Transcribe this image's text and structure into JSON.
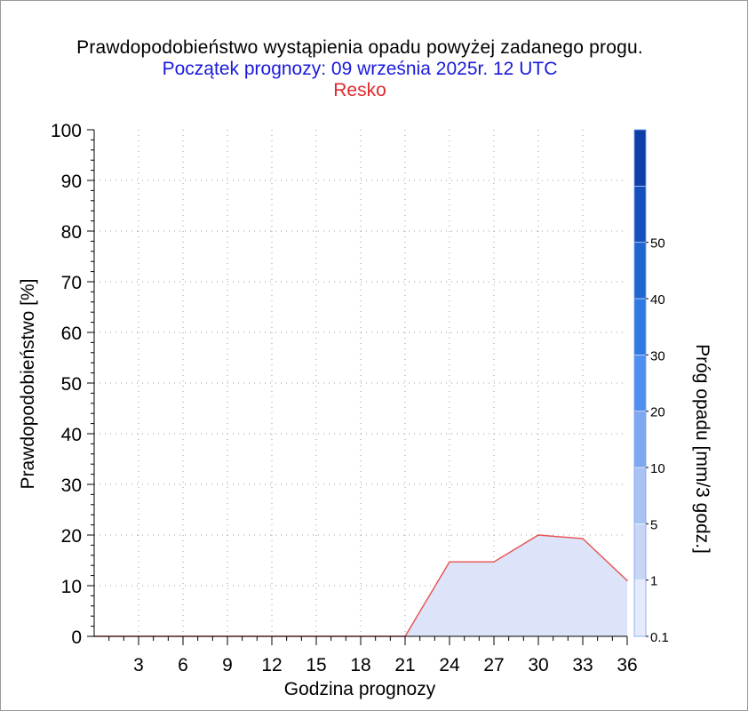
{
  "header": {
    "title": "Prawdopodobieństwo wystąpienia opadu powyżej zadanego progu.",
    "subtitle": "Początek prognozy: 09 września 2025r. 12 UTC",
    "location": "Resko"
  },
  "colors": {
    "title": "#000000",
    "subtitle": "#1a1adb",
    "location": "#e0282e",
    "series_line": "#e8504f",
    "series_fill": "#dde3f8"
  },
  "chart_data": {
    "type": "area",
    "title": "Prawdopodobieństwo wystąpienia opadu powyżej zadanego progu.",
    "xlabel": "Godzina prognozy",
    "ylabel": "Prawdopodobieństwo [%]",
    "xlim": [
      0,
      36
    ],
    "ylim": [
      0,
      100
    ],
    "x_ticks": [
      3,
      6,
      9,
      12,
      15,
      18,
      21,
      24,
      27,
      30,
      33,
      36
    ],
    "y_ticks": [
      0,
      10,
      20,
      30,
      40,
      50,
      60,
      70,
      80,
      90,
      100
    ],
    "grid": true,
    "x": [
      0,
      3,
      6,
      9,
      12,
      15,
      18,
      21,
      24,
      27,
      30,
      33,
      36
    ],
    "series": [
      {
        "threshold": "0.1",
        "values": [
          0,
          0,
          0,
          0,
          0,
          0,
          0,
          0,
          14.7,
          14.7,
          20.0,
          19.3,
          11.0
        ]
      }
    ],
    "colorbar": {
      "label": "Próg opadu [mm/3 godz.]",
      "tick_labels": [
        "0.1",
        "1",
        "5",
        "10",
        "20",
        "30",
        "40",
        "50"
      ],
      "colors": [
        "#e6ebfb",
        "#c8d6f6",
        "#a9c2f4",
        "#7fa8f1",
        "#4f8ff0",
        "#2d7be2",
        "#1f66cf",
        "#1650bf",
        "#0d3fa6"
      ]
    }
  }
}
